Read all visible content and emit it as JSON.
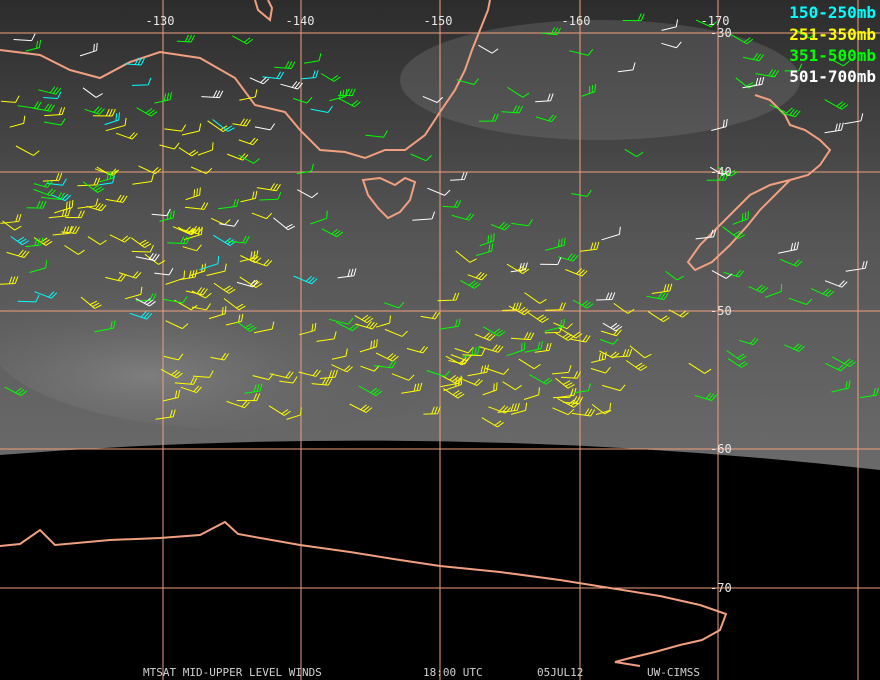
{
  "longitude_labels": [
    "-130",
    "-140",
    "-150",
    "-160",
    "-170"
  ],
  "latitude_labels": [
    "-30",
    "-40",
    "-50",
    "-60",
    "-70"
  ],
  "legend": [
    {
      "label": "150-250mb",
      "color": "#00ffff"
    },
    {
      "label": "251-350mb",
      "color": "#ffff00"
    },
    {
      "label": "351-500mb",
      "color": "#00ff00"
    },
    {
      "label": "501-700mb",
      "color": "#ffffff"
    }
  ],
  "footer": {
    "title": "MTSAT MID-UPPER LEVEL WINDS",
    "time": "18:00 UTC",
    "date": "05JUL12",
    "source": "UW-CIMSS"
  }
}
